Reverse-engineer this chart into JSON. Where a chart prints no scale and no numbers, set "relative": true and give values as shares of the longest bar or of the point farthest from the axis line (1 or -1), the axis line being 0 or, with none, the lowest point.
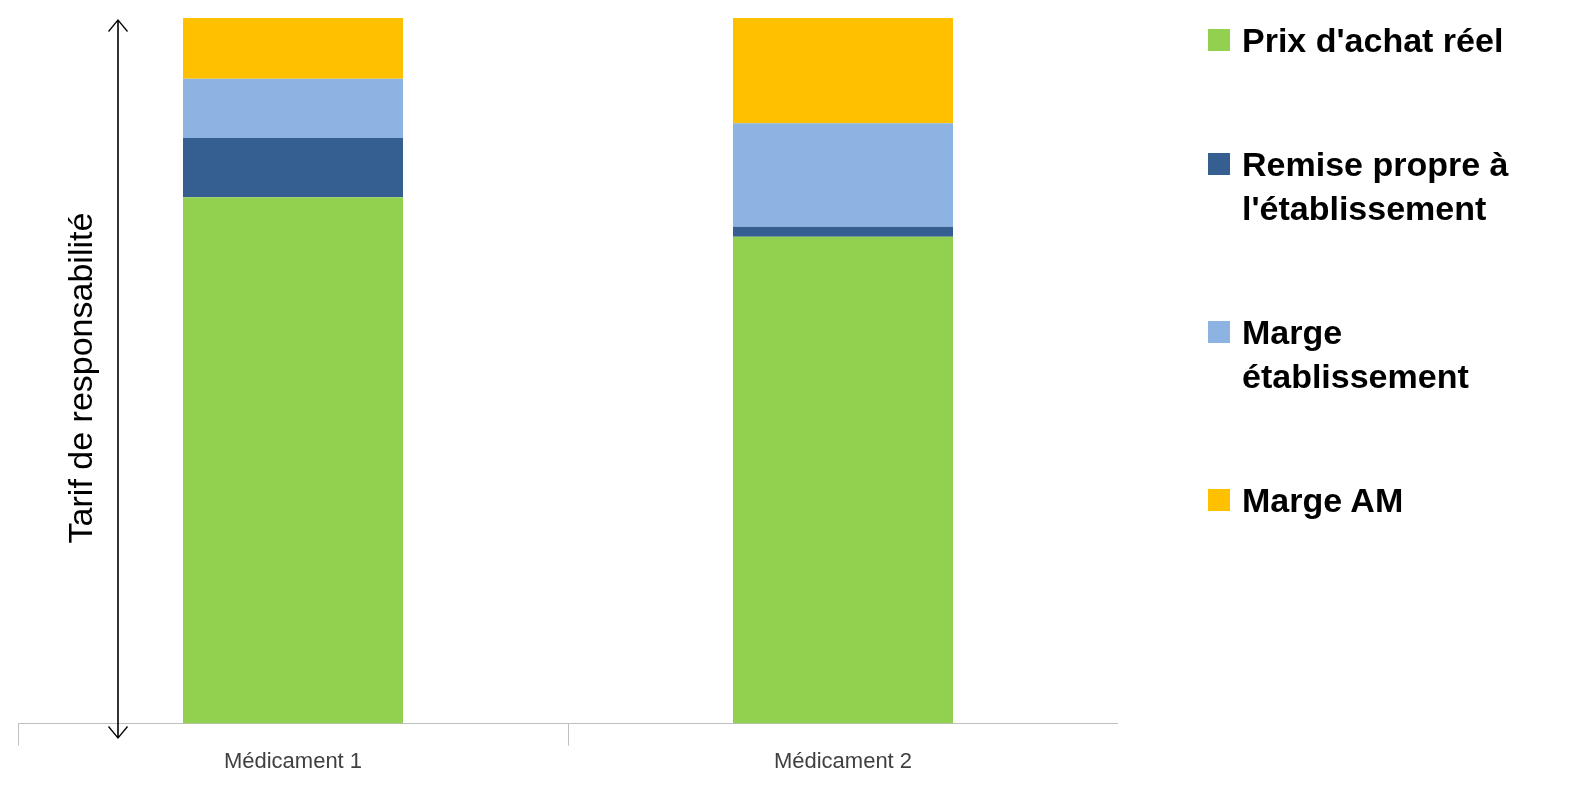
{
  "chart_data": {
    "type": "bar",
    "stacked": true,
    "relative": true,
    "ylabel": "Tarif de responsabilité",
    "categories": [
      "Médicament 1",
      "Médicament 2"
    ],
    "legend": "right",
    "grid": false,
    "series": [
      {
        "name": "Prix d'achat réel",
        "color": "#92d050",
        "values": [
          0.746,
          0.69
        ]
      },
      {
        "name": "Remise propre à l'établissement",
        "color": "#355f91",
        "values": [
          0.084,
          0.014
        ]
      },
      {
        "name": "Marge établissement",
        "color": "#8db3e2",
        "values": [
          0.084,
          0.147
        ]
      },
      {
        "name": "Marge AM",
        "color": "#ffc000",
        "values": [
          0.086,
          0.149
        ]
      }
    ]
  }
}
